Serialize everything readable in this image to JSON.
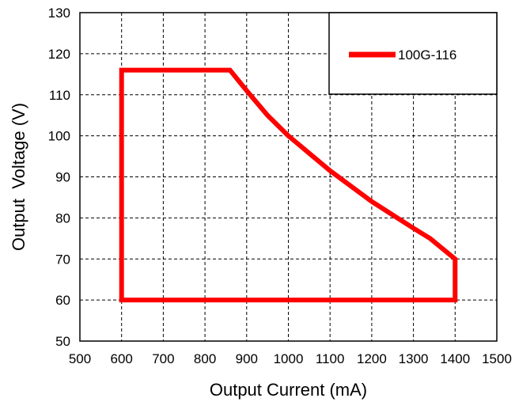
{
  "chart_data": {
    "type": "line",
    "title": "",
    "xlabel": "Output Current (mA)",
    "ylabel": "Output  Voltage (V)",
    "xlim": [
      500,
      1500
    ],
    "ylim": [
      50,
      130
    ],
    "xticks": [
      500,
      600,
      700,
      800,
      900,
      1000,
      1100,
      1200,
      1300,
      1400,
      1500
    ],
    "yticks": [
      50,
      60,
      70,
      80,
      90,
      100,
      110,
      120,
      130
    ],
    "grid": true,
    "legend": "top-right",
    "series": [
      {
        "name": "100G-116",
        "color": "#ff0000",
        "x": [
          600,
          600,
          860,
          900,
          950,
          1000,
          1100,
          1200,
          1300,
          1340,
          1400,
          1400,
          600
        ],
        "y": [
          60,
          116,
          116,
          111,
          105,
          100,
          91.5,
          84,
          77.5,
          75,
          70,
          60,
          60
        ]
      }
    ]
  }
}
